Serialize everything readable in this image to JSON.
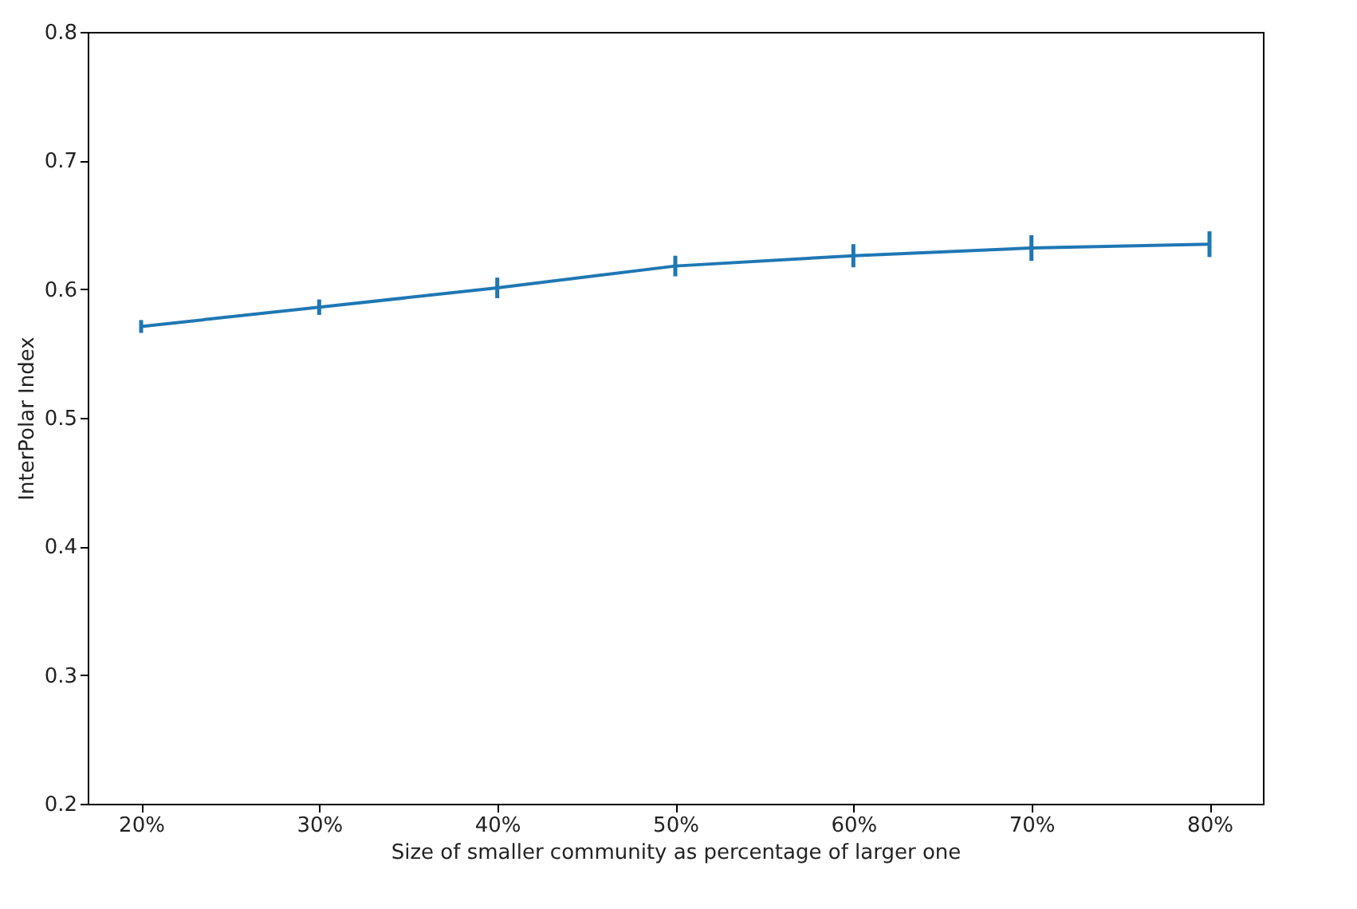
{
  "chart_data": {
    "type": "line",
    "xlabel": "Size of smaller community as percentage of larger one",
    "ylabel": "InterPolar Index",
    "x": [
      20,
      30,
      40,
      50,
      60,
      70,
      80
    ],
    "series": [
      {
        "color": "#1f77b4",
        "values": [
          0.571,
          0.586,
          0.601,
          0.618,
          0.626,
          0.632,
          0.635
        ],
        "errors": [
          0.005,
          0.006,
          0.008,
          0.008,
          0.009,
          0.01,
          0.01
        ]
      }
    ],
    "xlim": [
      17,
      83
    ],
    "xticks": [
      {
        "value": 20,
        "label": "20%"
      },
      {
        "value": 30,
        "label": "30%"
      },
      {
        "value": 40,
        "label": "40%"
      },
      {
        "value": 50,
        "label": "50%"
      },
      {
        "value": 60,
        "label": "60%"
      },
      {
        "value": 70,
        "label": "70%"
      },
      {
        "value": 80,
        "label": "80%"
      }
    ],
    "ylim": [
      0.2,
      0.8
    ],
    "yticks": [
      0.2,
      0.3,
      0.4,
      0.5,
      0.6,
      0.7,
      0.8
    ],
    "grid": false,
    "marker": "none",
    "line_style": "solid"
  }
}
